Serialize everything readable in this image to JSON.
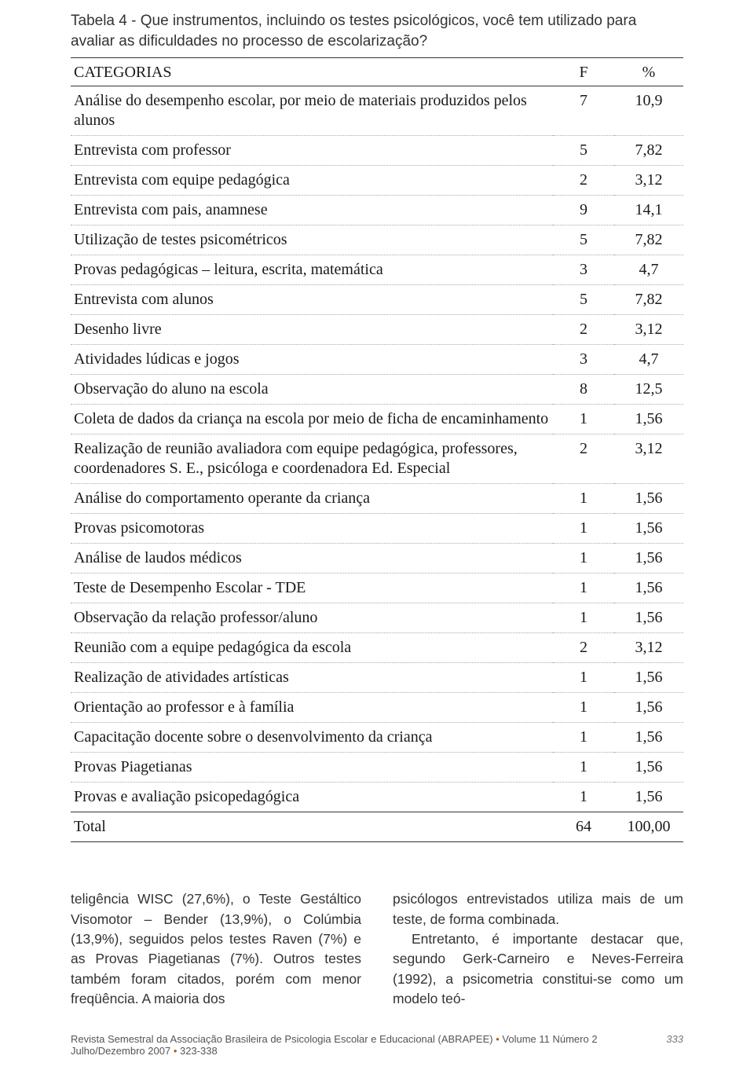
{
  "caption": "Tabela 4 - Que instrumentos, incluindo os testes psicológicos, você tem utilizado para avaliar as dificuldades no processo de escolarização?",
  "table": {
    "header": {
      "c0": "CATEGORIAS",
      "c1": "F",
      "c2": "%"
    },
    "rows": [
      {
        "cat": "Análise do desempenho escolar, por meio de materiais produzidos pelos alunos",
        "f": "7",
        "p": "10,9"
      },
      {
        "cat": "Entrevista com professor",
        "f": "5",
        "p": "7,82"
      },
      {
        "cat": "Entrevista com equipe pedagógica",
        "f": "2",
        "p": "3,12"
      },
      {
        "cat": "Entrevista com pais, anamnese",
        "f": "9",
        "p": "14,1"
      },
      {
        "cat": "Utilização de testes psicométricos",
        "f": "5",
        "p": "7,82"
      },
      {
        "cat": "Provas pedagógicas – leitura, escrita, matemática",
        "f": "3",
        "p": "4,7"
      },
      {
        "cat": "Entrevista com alunos",
        "f": "5",
        "p": "7,82"
      },
      {
        "cat": "Desenho livre",
        "f": "2",
        "p": "3,12"
      },
      {
        "cat": "Atividades lúdicas e jogos",
        "f": "3",
        "p": "4,7"
      },
      {
        "cat": "Observação do aluno na escola",
        "f": "8",
        "p": "12,5"
      },
      {
        "cat": "Coleta de dados da criança na escola por meio de ficha de encaminhamento",
        "f": "1",
        "p": "1,56"
      },
      {
        "cat": "Realização de reunião avaliadora com equipe pedagógica, professores, coordenadores S. E., psicóloga e coordenadora Ed. Especial",
        "f": "2",
        "p": "3,12"
      },
      {
        "cat": "Análise do comportamento operante da criança",
        "f": "1",
        "p": "1,56"
      },
      {
        "cat": "Provas psicomotoras",
        "f": "1",
        "p": "1,56"
      },
      {
        "cat": "Análise de laudos médicos",
        "f": "1",
        "p": "1,56"
      },
      {
        "cat": "Teste de Desempenho Escolar - TDE",
        "f": "1",
        "p": "1,56"
      },
      {
        "cat": "Observação da relação professor/aluno",
        "f": "1",
        "p": "1,56"
      },
      {
        "cat": "Reunião com a equipe pedagógica da escola",
        "f": "2",
        "p": "3,12"
      },
      {
        "cat": "Realização de atividades artísticas",
        "f": "1",
        "p": "1,56"
      },
      {
        "cat": "Orientação ao professor e à família",
        "f": "1",
        "p": "1,56"
      },
      {
        "cat": "Capacitação docente sobre o desenvolvimento da criança",
        "f": "1",
        "p": "1,56"
      },
      {
        "cat": "Provas Piagetianas",
        "f": "1",
        "p": "1,56"
      },
      {
        "cat": "Provas e avaliação psicopedagógica",
        "f": "1",
        "p": "1,56"
      }
    ],
    "total": {
      "cat": "Total",
      "f": "64",
      "p": "100,00"
    }
  },
  "body": {
    "left": "teligência WISC (27,6%), o Teste Gestáltico Visomotor – Bender (13,9%), o Colúmbia (13,9%), seguidos pelos testes Raven (7%) e as Provas Piagetianas (7%). Outros testes também foram citados, porém com menor freqüência. A maioria dos",
    "right1": "psicólogos entrevistados utiliza mais de um teste, de forma combinada.",
    "right2": "Entretanto, é importante destacar que, segundo Gerk-Carneiro e Neves-Ferreira (1992), a psicometria constitui-se como um modelo teó-"
  },
  "footer": {
    "journal": "Revista Semestral da Associação Brasileira de Psicologia Escolar e Educacional (ABRAPEE)",
    "issue": "Volume 11 Número 2 Julho/Dezembro 2007",
    "pages": "323-338",
    "pagenum": "333"
  }
}
